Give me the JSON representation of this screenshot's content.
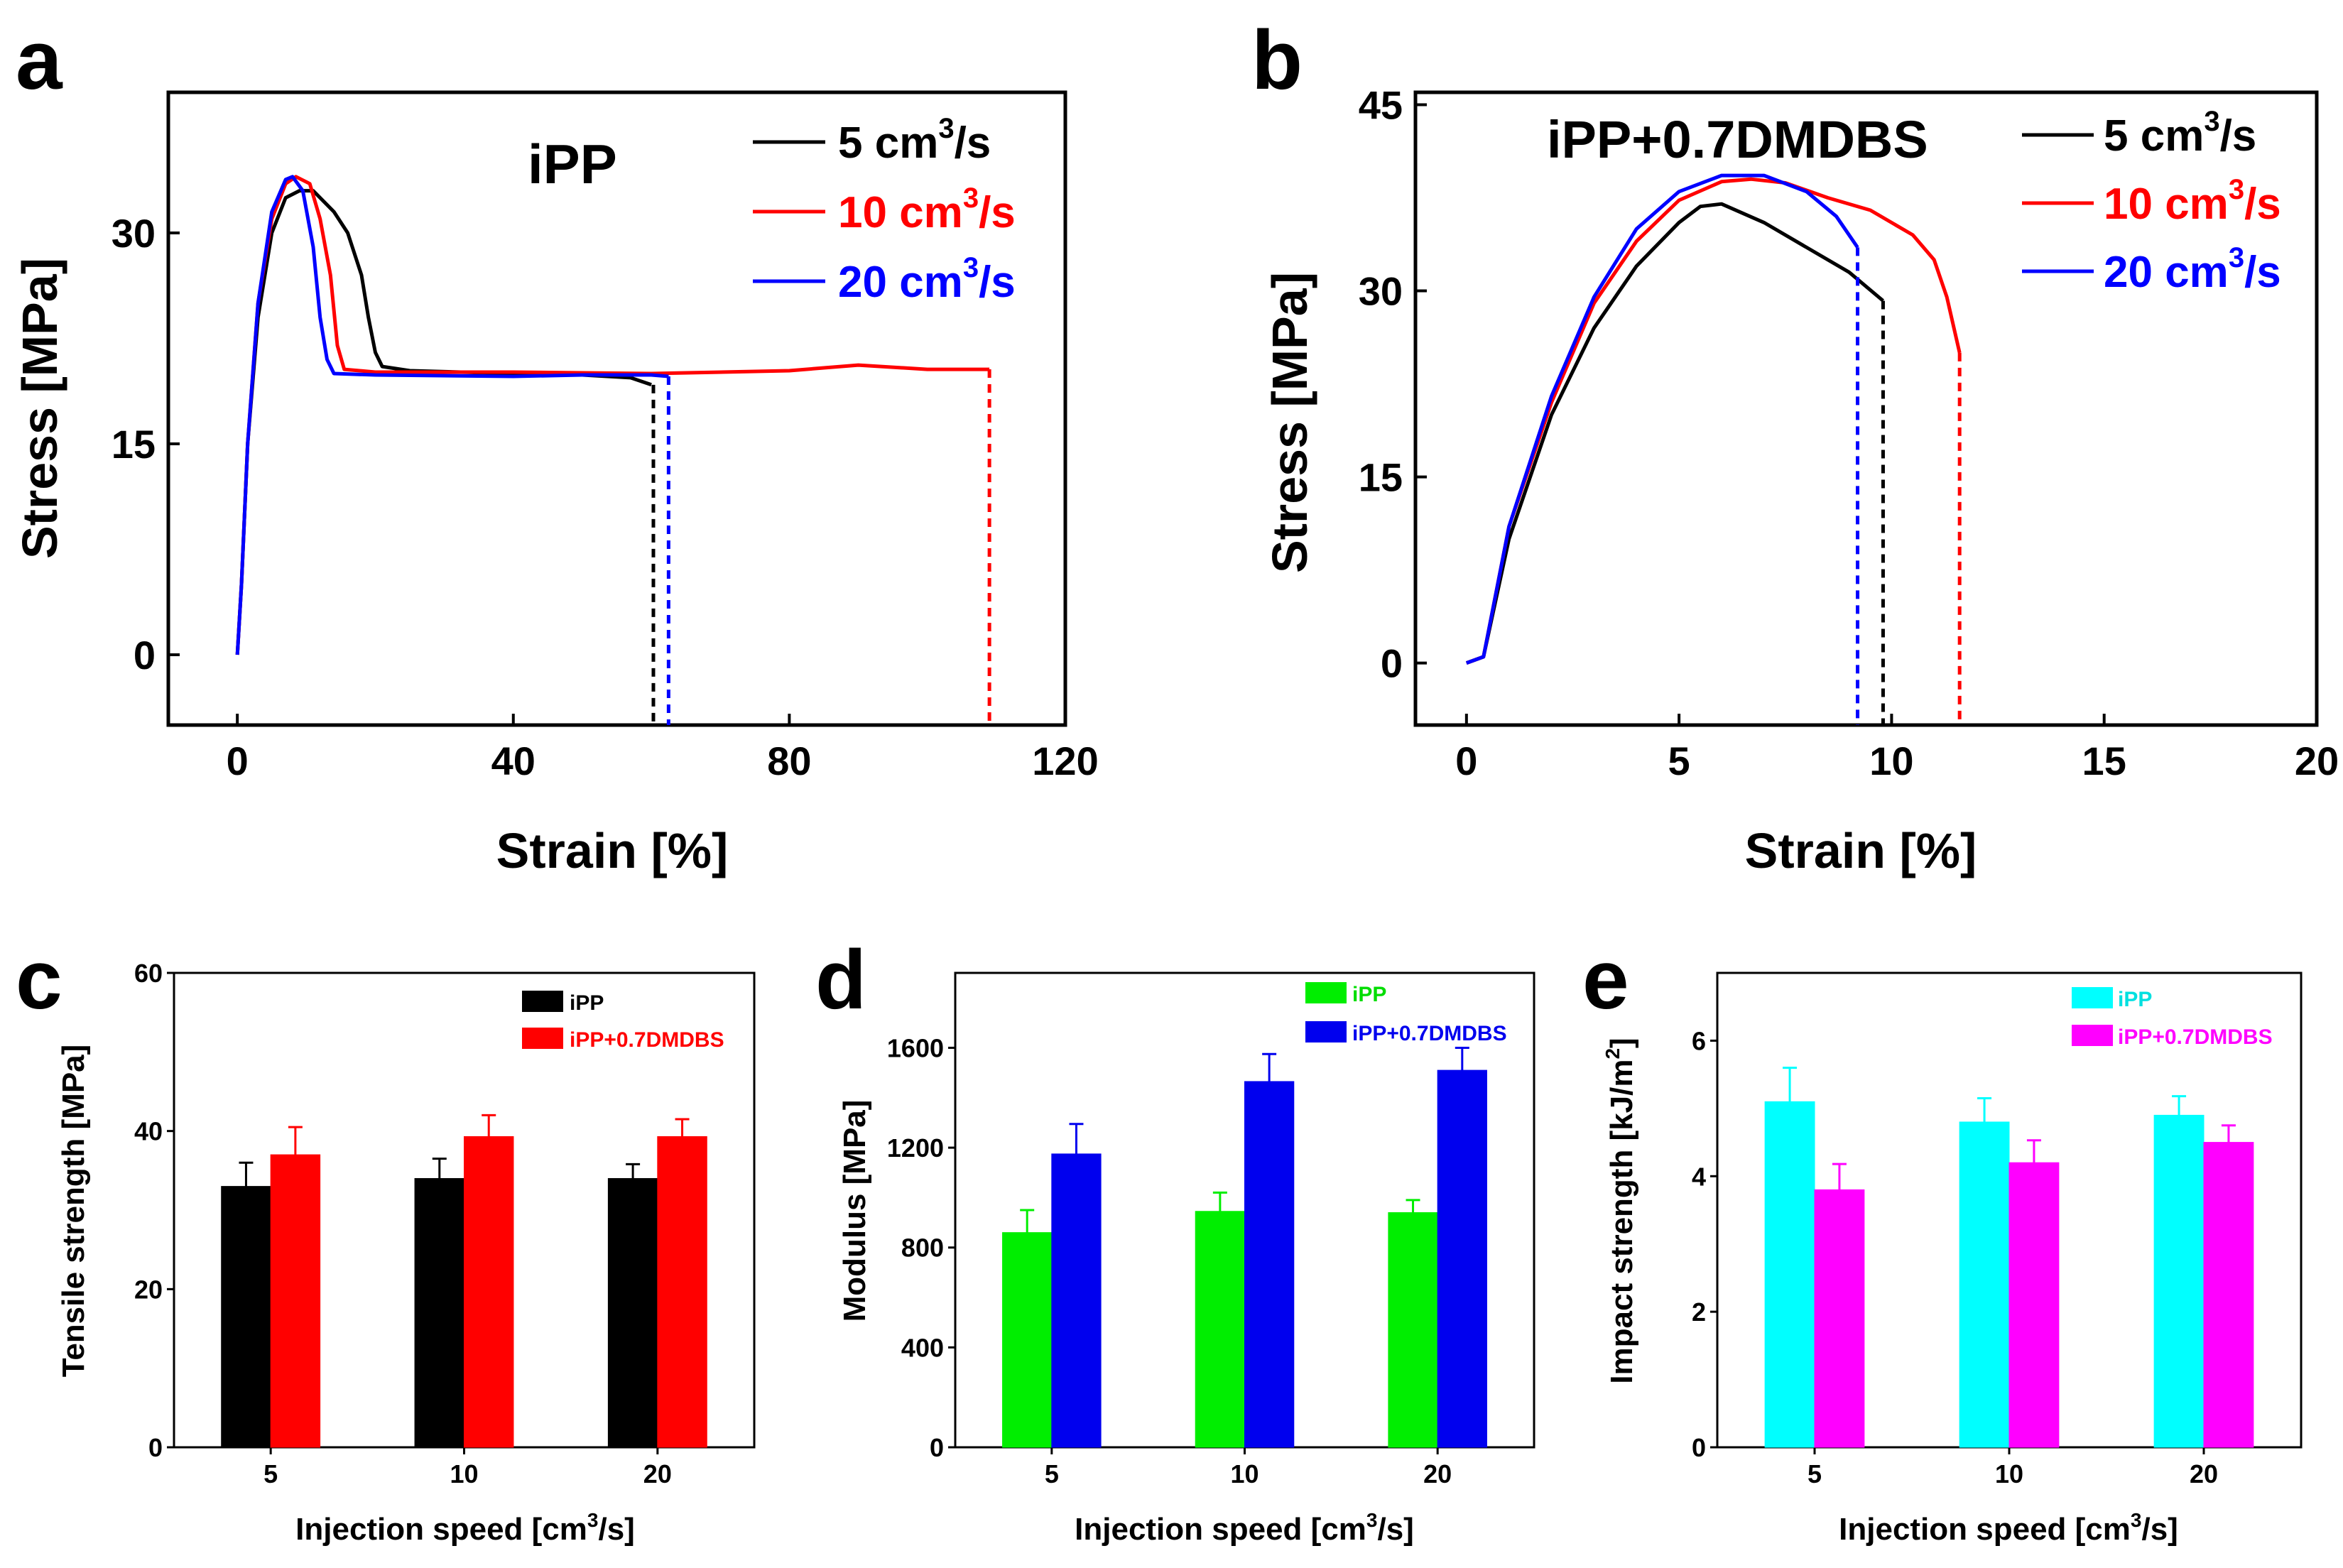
{
  "panels": {
    "a": {
      "label": "a",
      "annotation": "iPP",
      "legend_unit": "cm",
      "legend_sup": "3",
      "legend_tail": "/s"
    },
    "b": {
      "label": "b",
      "annotation": "iPP+0.7DMDBS",
      "legend_unit": "cm",
      "legend_sup": "3",
      "legend_tail": "/s"
    },
    "c": {
      "label": "c"
    },
    "d": {
      "label": "d"
    },
    "e": {
      "label": "e"
    }
  },
  "chart_data": [
    {
      "panel": "a",
      "type": "line",
      "xlabel": "Strain [%]",
      "ylabel": "Stress [MPa]",
      "xlim": [
        -10,
        120
      ],
      "ylim": [
        -5,
        40
      ],
      "xticks": [
        0,
        40,
        80,
        120
      ],
      "yticks": [
        0,
        15,
        30
      ],
      "legend_position": "top-right",
      "series": [
        {
          "name": "5 cm3/s",
          "legend_num": "5",
          "color": "#000000",
          "points": [
            [
              0,
              0
            ],
            [
              0.6,
              5
            ],
            [
              1.5,
              15
            ],
            [
              3,
              24
            ],
            [
              5,
              30
            ],
            [
              7,
              32.5
            ],
            [
              9,
              33
            ],
            [
              11,
              33
            ],
            [
              14,
              31.5
            ],
            [
              16,
              30
            ],
            [
              18,
              27
            ],
            [
              19,
              24
            ],
            [
              20,
              21.5
            ],
            [
              21,
              20.5
            ],
            [
              25,
              20.2
            ],
            [
              40,
              20
            ],
            [
              50,
              19.9
            ],
            [
              57,
              19.7
            ],
            [
              60,
              19.2
            ]
          ],
          "break_x": 60.3
        },
        {
          "name": "10 cm3/s",
          "legend_num": "10",
          "color": "#ff0000",
          "points": [
            [
              0,
              0
            ],
            [
              0.6,
              5
            ],
            [
              1.5,
              15
            ],
            [
              3,
              25
            ],
            [
              5,
              31
            ],
            [
              7,
              33.5
            ],
            [
              8.5,
              34
            ],
            [
              10.5,
              33.5
            ],
            [
              12,
              31
            ],
            [
              13.5,
              27
            ],
            [
              14.5,
              22
            ],
            [
              15.5,
              20.3
            ],
            [
              20,
              20.1
            ],
            [
              40,
              20.1
            ],
            [
              60,
              20
            ],
            [
              80,
              20.2
            ],
            [
              90,
              20.6
            ],
            [
              100,
              20.3
            ],
            [
              109,
              20.3
            ]
          ],
          "break_x": 109
        },
        {
          "name": "20 cm3/s",
          "legend_num": "20",
          "color": "#0000ff",
          "points": [
            [
              0,
              0
            ],
            [
              0.6,
              5
            ],
            [
              1.5,
              15
            ],
            [
              3,
              25
            ],
            [
              5,
              31.5
            ],
            [
              7,
              33.8
            ],
            [
              8,
              34
            ],
            [
              9.5,
              33
            ],
            [
              11,
              29
            ],
            [
              12,
              24
            ],
            [
              13,
              21
            ],
            [
              14,
              20
            ],
            [
              20,
              19.9
            ],
            [
              40,
              19.8
            ],
            [
              50,
              19.9
            ],
            [
              60,
              19.9
            ],
            [
              62.5,
              19.8
            ]
          ],
          "break_x": 62.5
        }
      ]
    },
    {
      "panel": "b",
      "type": "line",
      "xlabel": "Strain [%]",
      "ylabel": "Stress [MPa]",
      "xlim": [
        -1.2,
        20
      ],
      "ylim": [
        -5,
        46
      ],
      "xticks": [
        0,
        5,
        10,
        15,
        20
      ],
      "yticks": [
        0,
        15,
        30,
        45
      ],
      "legend_position": "top-right",
      "series": [
        {
          "name": "5 cm3/s",
          "legend_num": "5",
          "color": "#000000",
          "points": [
            [
              0,
              0
            ],
            [
              0.4,
              0.5
            ],
            [
              1,
              10
            ],
            [
              2,
              20
            ],
            [
              3,
              27
            ],
            [
              4,
              32
            ],
            [
              5,
              35.5
            ],
            [
              5.5,
              36.8
            ],
            [
              6,
              37
            ],
            [
              7,
              35.5
            ],
            [
              8,
              33.5
            ],
            [
              9,
              31.5
            ],
            [
              9.8,
              29.2
            ]
          ],
          "break_x": 9.8
        },
        {
          "name": "10 cm3/s",
          "legend_num": "10",
          "color": "#ff0000",
          "points": [
            [
              0,
              0
            ],
            [
              0.4,
              0.5
            ],
            [
              1,
              11
            ],
            [
              2,
              21
            ],
            [
              3,
              29
            ],
            [
              4,
              34
            ],
            [
              5,
              37.3
            ],
            [
              6,
              38.8
            ],
            [
              6.7,
              39
            ],
            [
              7.5,
              38.7
            ],
            [
              8.5,
              37.5
            ],
            [
              9.5,
              36.5
            ],
            [
              10.5,
              34.5
            ],
            [
              11,
              32.5
            ],
            [
              11.3,
              29.5
            ],
            [
              11.6,
              25
            ]
          ],
          "break_x": 11.6
        },
        {
          "name": "20 cm3/s",
          "legend_num": "20",
          "color": "#0000ff",
          "points": [
            [
              0,
              0
            ],
            [
              0.4,
              0.5
            ],
            [
              1,
              11
            ],
            [
              2,
              21.5
            ],
            [
              3,
              29.5
            ],
            [
              4,
              35
            ],
            [
              5,
              38
            ],
            [
              6,
              39.3
            ],
            [
              7,
              39.3
            ],
            [
              8,
              38
            ],
            [
              8.7,
              36
            ],
            [
              9.2,
              33.5
            ]
          ],
          "break_x": 9.2
        }
      ]
    },
    {
      "panel": "c",
      "type": "bar",
      "xlabel": "Injection speed [cm3/s]",
      "xlabel_main": "Injection speed [cm",
      "xlabel_sup": "3",
      "xlabel_tail": "/s]",
      "ylabel": "Tensile strength [MPa]",
      "ylim": [
        0,
        60
      ],
      "yticks": [
        0,
        20,
        40,
        60
      ],
      "categories": [
        "5",
        "10",
        "20"
      ],
      "legend_position": "top-right",
      "series": [
        {
          "name": "iPP",
          "color": "#000000",
          "values": [
            33,
            34,
            34
          ],
          "errors": [
            3,
            2.5,
            1.8
          ]
        },
        {
          "name": "iPP+0.7DMDBS",
          "color": "#ff0000",
          "values": [
            37,
            39.3,
            39.3
          ],
          "errors": [
            3.5,
            2.7,
            2.2
          ]
        }
      ]
    },
    {
      "panel": "d",
      "type": "bar",
      "xlabel": "Injection speed [cm3/s]",
      "xlabel_main": "Injection speed [cm",
      "xlabel_sup": "3",
      "xlabel_tail": "/s]",
      "ylabel": "Modulus [MPa]",
      "ylim": [
        0,
        1900
      ],
      "yticks": [
        0,
        400,
        800,
        1200,
        1600
      ],
      "categories": [
        "5",
        "10",
        "20"
      ],
      "legend_position": "top-right",
      "series": [
        {
          "name": "iPP",
          "color": "#00ee00",
          "values": [
            860,
            945,
            940
          ],
          "errors": [
            90,
            75,
            50
          ]
        },
        {
          "name": "iPP+0.7DMDBS",
          "color": "#0000ee",
          "values": [
            1175,
            1465,
            1510
          ],
          "errors": [
            120,
            110,
            90
          ]
        }
      ]
    },
    {
      "panel": "e",
      "type": "bar",
      "xlabel": "Injection speed [cm3/s]",
      "xlabel_main": "Injection speed [cm",
      "xlabel_sup": "3",
      "xlabel_tail": "/s]",
      "ylabel": "Impact strength [kJ/m2]",
      "ylabel_main": "Impact strength [kJ/m",
      "ylabel_sup": "2",
      "ylabel_tail": "]",
      "ylim": [
        0,
        7
      ],
      "yticks": [
        0,
        2,
        4,
        6
      ],
      "categories": [
        "5",
        "10",
        "20"
      ],
      "legend_position": "top-right",
      "series": [
        {
          "name": "iPP",
          "color": "#00ffff",
          "values": [
            5.1,
            4.8,
            4.9
          ],
          "errors": [
            0.5,
            0.35,
            0.28
          ]
        },
        {
          "name": "iPP+0.7DMDBS",
          "color": "#ff00ff",
          "values": [
            3.8,
            4.2,
            4.5
          ],
          "errors": [
            0.38,
            0.33,
            0.25
          ]
        }
      ]
    }
  ]
}
